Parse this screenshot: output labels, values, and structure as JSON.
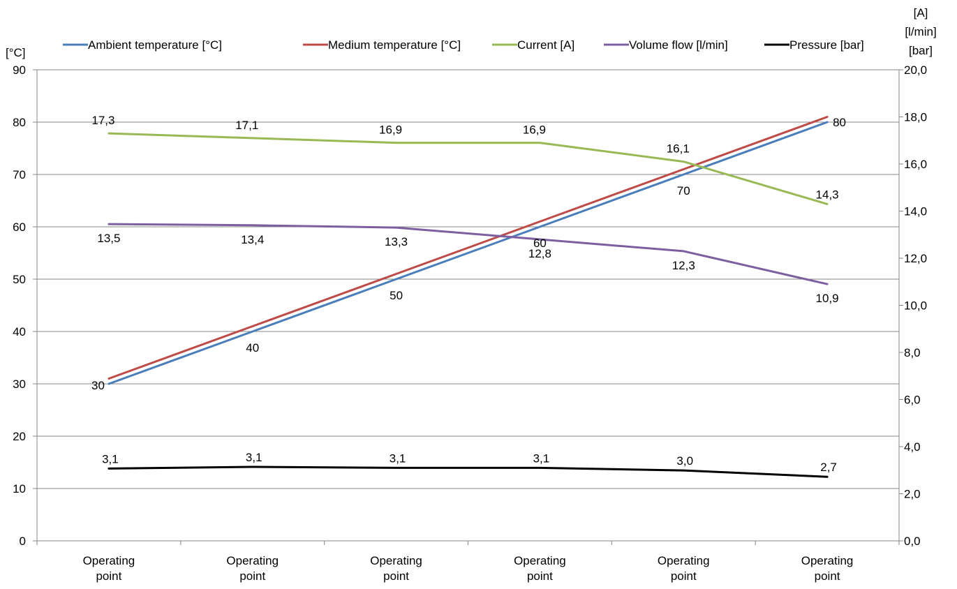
{
  "chart_data": {
    "type": "line",
    "categories": [
      "Operating point",
      "Operating point",
      "Operating point",
      "Operating point",
      "Operating point",
      "Operating point"
    ],
    "left_axis": {
      "unit_label": "[°C]",
      "ylim": [
        0,
        90
      ],
      "ticks": [
        "0",
        "10",
        "20",
        "30",
        "40",
        "50",
        "60",
        "70",
        "80",
        "90"
      ]
    },
    "right_axis": {
      "unit_labels": [
        "[A]",
        "[l/min]",
        "[bar]"
      ],
      "ylim": [
        0,
        20
      ],
      "ticks": [
        "0,0",
        "2,0",
        "4,0",
        "6,0",
        "8,0",
        "10,0",
        "12,0",
        "14,0",
        "16,0",
        "18,0",
        "20,0"
      ]
    },
    "grid": true,
    "legend_position": "top",
    "series": [
      {
        "name": "Ambient temperature [°C]",
        "axis": "left",
        "color": "#4a7ebb",
        "values": [
          30,
          40,
          50,
          60,
          70,
          80
        ],
        "labels": [
          "30",
          "40",
          "50",
          "60",
          "70",
          "80"
        ]
      },
      {
        "name": "Medium temperature [°C]",
        "axis": "left",
        "color": "#be4b48",
        "values": [
          31,
          41,
          51,
          61,
          71,
          81
        ],
        "labels": []
      },
      {
        "name": "Current [A]",
        "axis": "right",
        "color": "#98b954",
        "values": [
          17.3,
          17.1,
          16.9,
          16.9,
          16.1,
          14.3
        ],
        "labels": [
          "17,3",
          "17,1",
          "16,9",
          "16,9",
          "16,1",
          "14,3"
        ]
      },
      {
        "name": "Volume flow [l/min]",
        "axis": "right",
        "color": "#7d5fa0",
        "values": [
          13.45,
          13.4,
          13.3,
          12.8,
          12.3,
          10.9
        ],
        "labels": [
          "13,5",
          "13,4",
          "13,3",
          "12,8",
          "12,3",
          "10,9"
        ]
      },
      {
        "name": "Pressure [bar]",
        "axis": "right",
        "color": "#000000",
        "values": [
          3.07,
          3.14,
          3.1,
          3.1,
          2.99,
          2.72
        ],
        "labels": [
          "3,1",
          "3,1",
          "3,1",
          "3,1",
          "3,0",
          "2,7"
        ]
      }
    ]
  }
}
